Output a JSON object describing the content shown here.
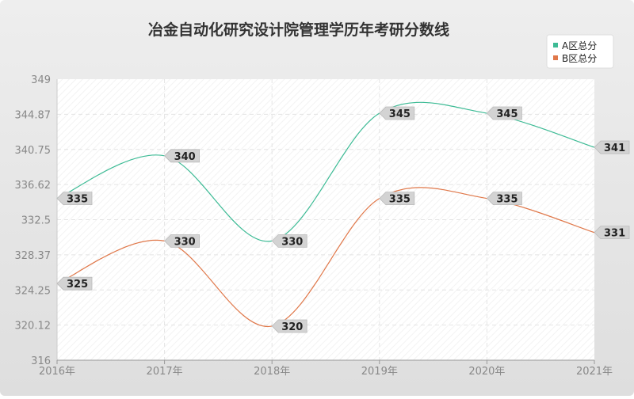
{
  "chart_data": {
    "type": "line",
    "title": "冶金自动化研究设计院管理学历年考研分数线",
    "categories": [
      "2016年",
      "2017年",
      "2018年",
      "2019年",
      "2020年",
      "2021年"
    ],
    "ylim": [
      316,
      349
    ],
    "yticks": [
      "316",
      "320.12",
      "324.25",
      "328.37",
      "332.5",
      "336.62",
      "340.75",
      "344.87",
      "349"
    ],
    "grid": true,
    "legend_position": "top-right",
    "series": [
      {
        "name": "A区总分",
        "color": "#3dbb95",
        "values": [
          335,
          340,
          330,
          345,
          345,
          341
        ]
      },
      {
        "name": "B区总分",
        "color": "#e0784a",
        "values": [
          325,
          330,
          320,
          335,
          335,
          331
        ]
      }
    ]
  }
}
